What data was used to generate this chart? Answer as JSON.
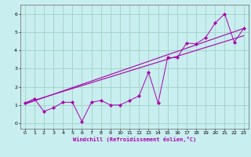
{
  "xlabel": "Windchill (Refroidissement éolien,°C)",
  "xlim": [
    -0.5,
    23.5
  ],
  "ylim": [
    -0.3,
    6.5
  ],
  "xticks": [
    0,
    1,
    2,
    3,
    4,
    5,
    6,
    7,
    8,
    9,
    10,
    11,
    12,
    13,
    14,
    15,
    16,
    17,
    18,
    19,
    20,
    21,
    22,
    23
  ],
  "yticks": [
    0,
    1,
    2,
    3,
    4,
    5,
    6
  ],
  "bg_color": "#c8eef0",
  "line_color": "#aa00aa",
  "grid_color": "#99ccbb",
  "data_x": [
    0,
    1,
    2,
    3,
    4,
    5,
    6,
    7,
    8,
    9,
    10,
    11,
    12,
    13,
    14,
    15,
    16,
    17,
    18,
    19,
    20,
    21,
    22,
    23
  ],
  "data_y": [
    1.1,
    1.35,
    0.65,
    0.85,
    1.15,
    1.15,
    0.1,
    1.15,
    1.25,
    1.0,
    1.0,
    1.25,
    1.5,
    2.8,
    1.1,
    3.6,
    3.6,
    4.4,
    4.35,
    4.7,
    5.5,
    6.0,
    4.45,
    5.2
  ],
  "trend1_x": [
    0,
    23
  ],
  "trend1_y": [
    1.05,
    5.2
  ],
  "trend2_x": [
    0,
    23
  ],
  "trend2_y": [
    1.1,
    4.8
  ]
}
